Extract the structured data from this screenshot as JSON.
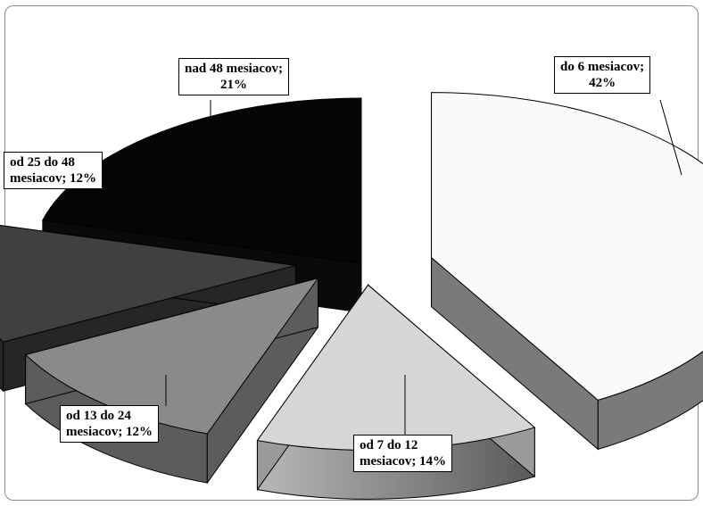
{
  "chart_data": {
    "type": "pie",
    "style": "3d-exploded",
    "slices": [
      {
        "line1": "do 6 mesiacov;",
        "line2": "42%",
        "value": 42
      },
      {
        "line1": "od 7 do  12",
        "line2": "mesiacov;  14%",
        "value": 14
      },
      {
        "line1": "od 13 do  24",
        "line2": "mesiacov;  12%",
        "value": 12
      },
      {
        "line1": "od 25 do  48",
        "line2": "mesiacov;  12%",
        "value": 12
      },
      {
        "line1": "nad  48 mesiacov;",
        "line2": "21%",
        "value": 21
      }
    ],
    "colors": {
      "top": [
        "#fafafa",
        "#d6d6d6",
        "#8a8a8a",
        "#404040",
        "#050505"
      ],
      "side": [
        "#7a7a7a",
        "#9a9a9a",
        "#5c5c5c",
        "#262626",
        "#0a0a0a"
      ],
      "edge": "#000000"
    },
    "legend": "none"
  }
}
